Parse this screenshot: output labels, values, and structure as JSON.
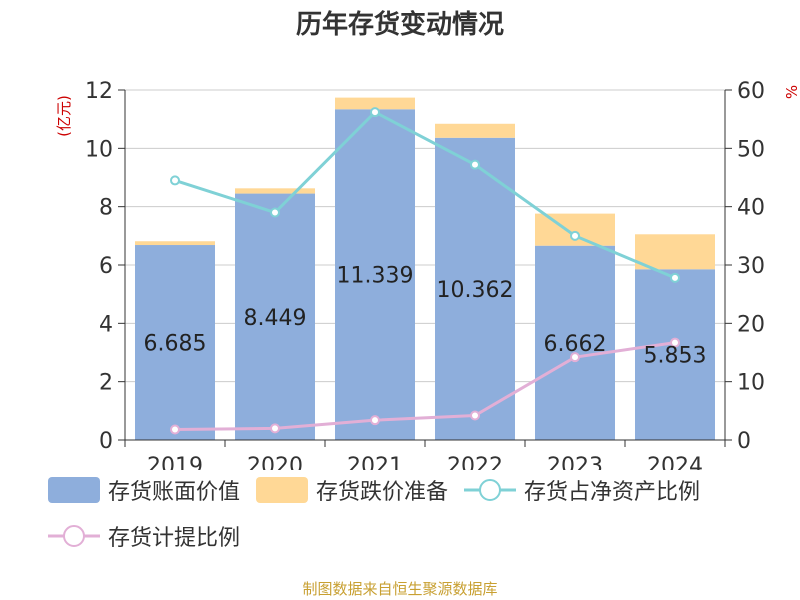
{
  "chart_data": {
    "type": "bar",
    "title": "历年存货变动情况",
    "ylabel": "(亿元)",
    "y2label": "%",
    "categories": [
      "2019",
      "2020",
      "2021",
      "2022",
      "2023",
      "2024"
    ],
    "ylim": [
      0,
      12
    ],
    "yticks": [
      "0",
      "2",
      "4",
      "6",
      "8",
      "10",
      "12"
    ],
    "y2lim": [
      0,
      60
    ],
    "y2ticks": [
      "0",
      "10",
      "20",
      "30",
      "40",
      "50",
      "60"
    ],
    "grid": true,
    "legend_position": "bottom",
    "series": [
      {
        "name": "存货账面价值",
        "kind": "bar",
        "color": "#8eaedc",
        "values": [
          6.685,
          8.449,
          11.339,
          10.362,
          6.662,
          5.853
        ],
        "labels": [
          "6.685",
          "8.449",
          "11.339",
          "10.362",
          "6.662",
          "5.853"
        ]
      },
      {
        "name": "存货跌价准备",
        "kind": "bar-stacked",
        "color": "#ffd896",
        "values": [
          0.13,
          0.18,
          0.4,
          0.48,
          1.1,
          1.2
        ]
      },
      {
        "name": "存货占净资产比例",
        "kind": "line",
        "axis": "right",
        "color": "#7fd1d6",
        "values": [
          44.5,
          39.0,
          56.2,
          47.2,
          35.0,
          27.8
        ]
      },
      {
        "name": "存货计提比例",
        "kind": "line",
        "axis": "right",
        "color": "#e2afd6",
        "values": [
          1.8,
          2.0,
          3.4,
          4.2,
          14.2,
          16.7
        ]
      }
    ]
  },
  "footer": "制图数据来自恒生聚源数据库"
}
